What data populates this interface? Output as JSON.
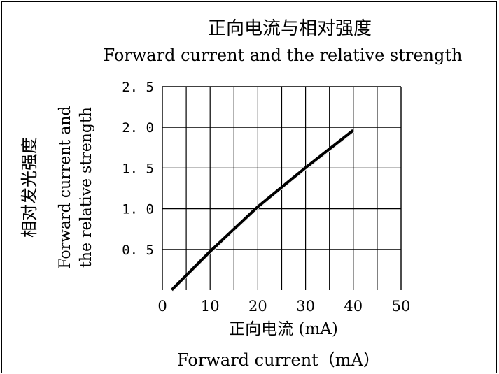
{
  "chart_data": {
    "type": "line",
    "title_cn": "正向电流与相对强度",
    "title_en": "Forward current and the relative strength",
    "xlabel_cn": "正向电流 (mA)",
    "xlabel_en": "Forward current（mA）",
    "ylabel_cn": "相对发光强度",
    "ylabel_en_line1": "Forward current and",
    "ylabel_en_line2": "the relative strength",
    "xlim": [
      0,
      50
    ],
    "ylim": [
      0,
      2.5
    ],
    "x_ticks": [
      0,
      10,
      20,
      30,
      40,
      50
    ],
    "x_tick_labels": [
      "0",
      "10",
      "20",
      "30",
      "40",
      "50"
    ],
    "y_ticks": [
      0.5,
      1.0,
      1.5,
      2.0,
      2.5
    ],
    "y_tick_labels": [
      "0. 5",
      "1. 0",
      "1. 5",
      "2. 0",
      "2. 5"
    ],
    "x_grid_step": 5,
    "y_grid_step": 0.5,
    "grid": true,
    "series": [
      {
        "x": [
          2,
          10,
          20,
          30,
          40
        ],
        "y": [
          0.0,
          0.47,
          1.02,
          1.5,
          1.96
        ]
      }
    ]
  }
}
